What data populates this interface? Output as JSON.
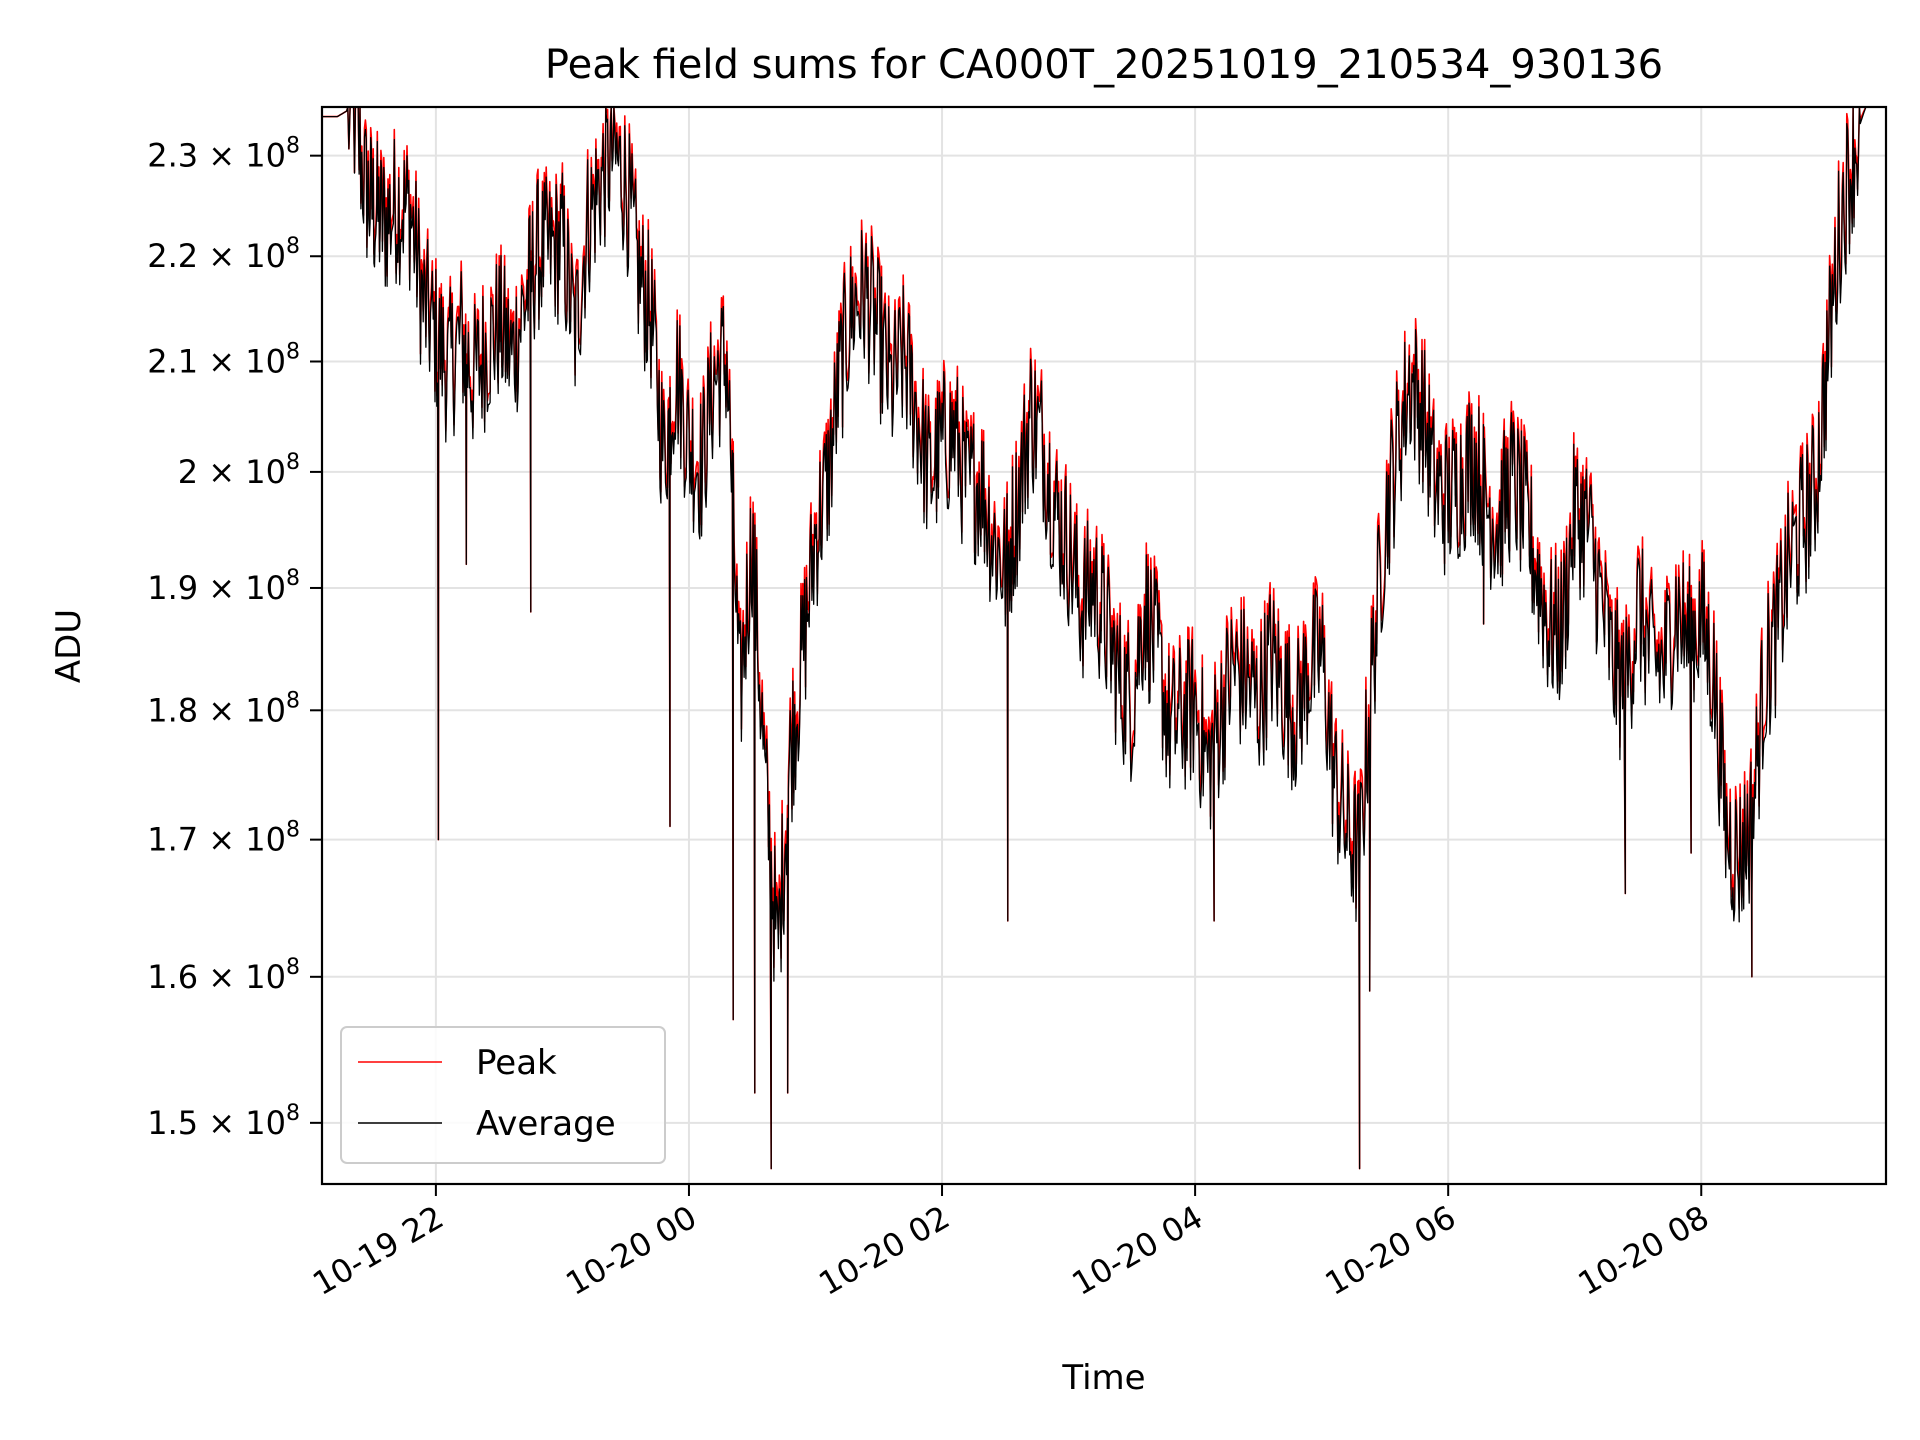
{
  "chart_data": {
    "type": "line",
    "title": "Peak field sums for CA000T_20251019_210534_930136",
    "xlabel": "Time",
    "ylabel": "ADU",
    "yscale": "log",
    "x_unit": "hours since 10-19 00:00",
    "xlim": [
      21.1,
      33.46
    ],
    "ylim": [
      146000000,
      235000000
    ],
    "grid": true,
    "legend_position": "lower-left",
    "x_ticks": [
      {
        "value": 22,
        "label": "10-19 22"
      },
      {
        "value": 24,
        "label": "10-20 00"
      },
      {
        "value": 26,
        "label": "10-20 02"
      },
      {
        "value": 28,
        "label": "10-20 04"
      },
      {
        "value": 30,
        "label": "10-20 06"
      },
      {
        "value": 32,
        "label": "10-20 08"
      }
    ],
    "y_ticks": [
      {
        "value": 150000000,
        "mantissa": "1.5",
        "exponent": "8"
      },
      {
        "value": 160000000,
        "mantissa": "1.6",
        "exponent": "8"
      },
      {
        "value": 170000000,
        "mantissa": "1.7",
        "exponent": "8"
      },
      {
        "value": 180000000,
        "mantissa": "1.8",
        "exponent": "8"
      },
      {
        "value": 190000000,
        "mantissa": "1.9",
        "exponent": "8"
      },
      {
        "value": 200000000,
        "mantissa": "2",
        "exponent": "8"
      },
      {
        "value": 210000000,
        "mantissa": "2.1",
        "exponent": "8"
      },
      {
        "value": 220000000,
        "mantissa": "2.2",
        "exponent": "8"
      },
      {
        "value": 230000000,
        "mantissa": "2.3",
        "exponent": "8"
      }
    ],
    "series": [
      {
        "name": "Peak",
        "color": "#ff0000"
      },
      {
        "name": "Average",
        "color": "#000000"
      }
    ],
    "x": [
      21.1,
      21.22,
      21.35,
      21.45,
      21.52,
      21.6,
      21.7,
      21.8,
      21.9,
      22.0,
      22.1,
      22.2,
      22.3,
      22.4,
      22.5,
      22.6,
      22.7,
      22.8,
      22.9,
      23.0,
      23.1,
      23.2,
      23.3,
      23.4,
      23.5,
      23.6,
      23.7,
      23.8,
      23.9,
      24.0,
      24.1,
      24.2,
      24.3,
      24.4,
      24.5,
      24.6,
      24.7,
      24.8,
      24.9,
      25.0,
      25.1,
      25.2,
      25.3,
      25.4,
      25.5,
      25.6,
      25.7,
      25.8,
      25.9,
      26.0,
      26.1,
      26.2,
      26.3,
      26.4,
      26.5,
      26.6,
      26.7,
      26.8,
      26.9,
      27.0,
      27.1,
      27.2,
      27.3,
      27.4,
      27.5,
      27.6,
      27.7,
      27.8,
      27.9,
      28.0,
      28.1,
      28.2,
      28.3,
      28.4,
      28.5,
      28.6,
      28.7,
      28.8,
      28.9,
      29.0,
      29.1,
      29.2,
      29.3,
      29.4,
      29.5,
      29.6,
      29.7,
      29.8,
      29.9,
      30.0,
      30.1,
      30.2,
      30.3,
      30.4,
      30.5,
      30.6,
      30.7,
      30.8,
      30.9,
      31.0,
      31.1,
      31.2,
      31.3,
      31.4,
      31.5,
      31.6,
      31.7,
      31.8,
      31.9,
      32.0,
      32.1,
      32.2,
      32.3,
      32.4,
      32.5,
      32.6,
      32.7,
      32.8,
      32.9,
      33.0,
      33.1,
      33.2,
      33.3,
      33.4
    ],
    "peak_values": [
      234000000,
      234000000,
      235000000,
      228000000,
      226000000,
      225000000,
      227000000,
      226000000,
      217000000,
      214000000,
      211000000,
      214000000,
      210000000,
      213000000,
      215000000,
      212000000,
      217000000,
      222000000,
      222000000,
      223000000,
      214000000,
      225000000,
      229000000,
      232000000,
      229000000,
      220000000,
      216000000,
      203000000,
      211000000,
      204000000,
      202000000,
      210000000,
      212000000,
      182000000,
      196000000,
      176000000,
      163000000,
      178000000,
      186000000,
      196000000,
      201000000,
      211000000,
      217000000,
      218000000,
      214000000,
      209000000,
      212000000,
      207000000,
      201000000,
      204000000,
      205000000,
      200000000,
      201000000,
      196000000,
      193000000,
      199000000,
      207000000,
      204000000,
      198000000,
      195000000,
      190000000,
      192000000,
      188000000,
      184000000,
      182000000,
      190000000,
      186000000,
      180000000,
      181000000,
      182000000,
      177000000,
      181000000,
      185000000,
      184000000,
      182000000,
      186000000,
      183000000,
      181000000,
      185000000,
      186000000,
      176000000,
      172000000,
      170000000,
      185000000,
      197000000,
      204000000,
      210000000,
      207000000,
      200000000,
      199000000,
      201000000,
      203000000,
      199000000,
      197000000,
      201000000,
      198000000,
      193000000,
      188000000,
      188000000,
      198000000,
      197000000,
      191000000,
      185000000,
      183000000,
      190000000,
      186000000,
      185000000,
      190000000,
      187000000,
      189000000,
      184000000,
      172000000,
      170000000,
      173000000,
      184000000,
      188000000,
      194000000,
      197000000,
      200000000,
      212000000,
      225000000,
      232000000,
      235000000,
      235000000
    ],
    "average_values": [
      234000000,
      234000000,
      235000000,
      227000000,
      225000000,
      224000000,
      226000000,
      225000000,
      216000000,
      213000000,
      210000000,
      213000000,
      209000000,
      212000000,
      214000000,
      211000000,
      216000000,
      221000000,
      221000000,
      222000000,
      213000000,
      224000000,
      228000000,
      231000000,
      228000000,
      219000000,
      215000000,
      202000000,
      210000000,
      203000000,
      201000000,
      209000000,
      211000000,
      181000000,
      195000000,
      175000000,
      162000000,
      177000000,
      185000000,
      195000000,
      200000000,
      210000000,
      216000000,
      217000000,
      213000000,
      208000000,
      211000000,
      206000000,
      200000000,
      203000000,
      204000000,
      199000000,
      200000000,
      195000000,
      192000000,
      198000000,
      206000000,
      203000000,
      197000000,
      194000000,
      189000000,
      191000000,
      187000000,
      183000000,
      181000000,
      189000000,
      185000000,
      179000000,
      180000000,
      181000000,
      176000000,
      180000000,
      184000000,
      183000000,
      181000000,
      185000000,
      182000000,
      180000000,
      184000000,
      185000000,
      175000000,
      171000000,
      169000000,
      184000000,
      196000000,
      203000000,
      209000000,
      206000000,
      199000000,
      198000000,
      200000000,
      202000000,
      198000000,
      196000000,
      200000000,
      197000000,
      192000000,
      187000000,
      187000000,
      197000000,
      196000000,
      190000000,
      184000000,
      182000000,
      189000000,
      185000000,
      184000000,
      189000000,
      186000000,
      188000000,
      183000000,
      171000000,
      169000000,
      172000000,
      183000000,
      187000000,
      193000000,
      196000000,
      199000000,
      211000000,
      224000000,
      231000000,
      235000000,
      235000000
    ],
    "dips": [
      {
        "x": 22.02,
        "y": 170000000
      },
      {
        "x": 22.24,
        "y": 192000000
      },
      {
        "x": 22.75,
        "y": 188000000
      },
      {
        "x": 23.85,
        "y": 171000000
      },
      {
        "x": 24.35,
        "y": 157000000
      },
      {
        "x": 24.52,
        "y": 152000000
      },
      {
        "x": 24.65,
        "y": 147000000
      },
      {
        "x": 24.78,
        "y": 152000000
      },
      {
        "x": 26.52,
        "y": 164000000
      },
      {
        "x": 28.15,
        "y": 164000000
      },
      {
        "x": 29.3,
        "y": 147000000
      },
      {
        "x": 29.38,
        "y": 159000000
      },
      {
        "x": 30.28,
        "y": 187000000
      },
      {
        "x": 31.4,
        "y": 166000000
      },
      {
        "x": 31.92,
        "y": 169000000
      },
      {
        "x": 32.4,
        "y": 160000000
      }
    ]
  }
}
